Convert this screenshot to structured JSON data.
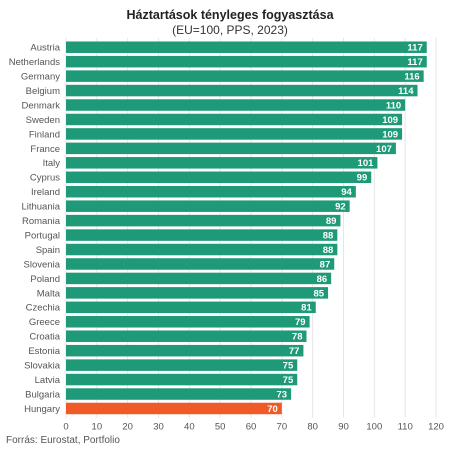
{
  "title": "Háztartások tényleges fogyasztása",
  "subtitle": "(EU=100, PPS, 2023)",
  "source": "Forrás: Eurostat, Portfolio",
  "colors": {
    "bar": "#1f9a78",
    "highlight": "#f05a28"
  },
  "chart_data": {
    "type": "bar",
    "orientation": "horizontal",
    "title": "Háztartások tényleges fogyasztása",
    "subtitle": "(EU=100, PPS, 2023)",
    "categories": [
      "Austria",
      "Netherlands",
      "Germany",
      "Belgium",
      "Denmark",
      "Sweden",
      "Finland",
      "France",
      "Italy",
      "Cyprus",
      "Ireland",
      "Lithuania",
      "Romania",
      "Portugal",
      "Spain",
      "Slovenia",
      "Poland",
      "Malta",
      "Czechia",
      "Greece",
      "Croatia",
      "Estonia",
      "Slovakia",
      "Latvia",
      "Bulgaria",
      "Hungary"
    ],
    "values": [
      117,
      117,
      116,
      114,
      110,
      109,
      109,
      107,
      101,
      99,
      94,
      92,
      89,
      88,
      88,
      87,
      86,
      85,
      81,
      79,
      78,
      77,
      75,
      75,
      73,
      70
    ],
    "highlight": "Hungary",
    "xlim": [
      0,
      120
    ],
    "xticks": [
      0,
      10,
      20,
      30,
      40,
      50,
      60,
      70,
      80,
      90,
      100,
      110,
      120
    ],
    "grid": true,
    "data_labels": true
  }
}
